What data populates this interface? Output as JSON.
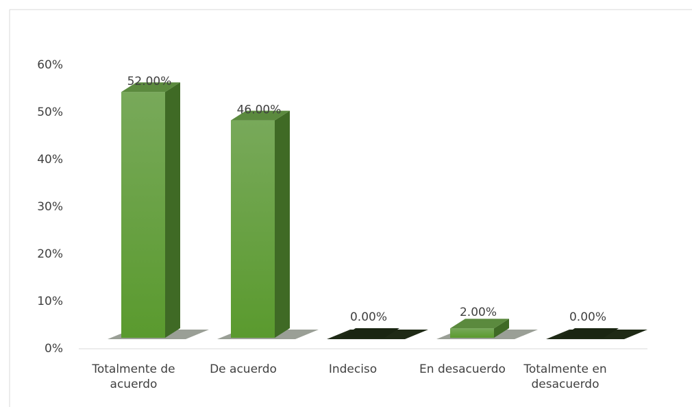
{
  "chart_data": {
    "type": "bar3d",
    "categories": [
      "Totalmente de acuerdo",
      "De acuerdo",
      "Indeciso",
      "En desacuerdo",
      "Totalmente en desacuerdo"
    ],
    "values": [
      52,
      46,
      0,
      2,
      0
    ],
    "value_labels": [
      "52.00%",
      "46.00%",
      "0.00%",
      "2.00%",
      "0.00%"
    ],
    "color": "#5f9e34",
    "ylim": [
      0,
      60
    ],
    "yticks": [
      {
        "value": 0,
        "label": "0%"
      },
      {
        "value": 10,
        "label": "10%"
      },
      {
        "value": 20,
        "label": "20%"
      },
      {
        "value": 30,
        "label": "30%"
      },
      {
        "value": 40,
        "label": "40%"
      },
      {
        "value": 50,
        "label": "50%"
      },
      {
        "value": 60,
        "label": "60%"
      }
    ]
  }
}
